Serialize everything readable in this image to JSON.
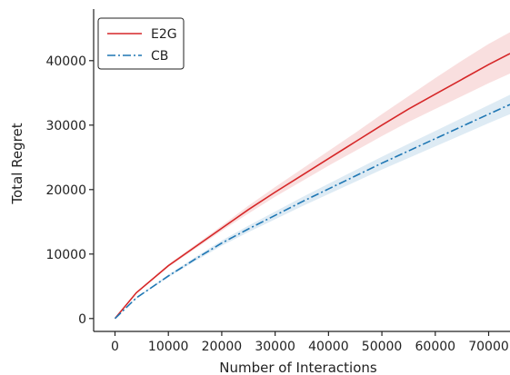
{
  "chart_data": {
    "type": "line",
    "title": "",
    "xlabel": "Number of Interactions",
    "ylabel": "Total Regret",
    "xlim": [
      -4000,
      74000
    ],
    "ylim": [
      -2000,
      48000
    ],
    "xticks": [
      0,
      10000,
      20000,
      30000,
      40000,
      50000,
      60000,
      70000
    ],
    "yticks": [
      0,
      10000,
      20000,
      30000,
      40000
    ],
    "grid": false,
    "legend": "top-left",
    "series": [
      {
        "name": "E2G",
        "color": "#d62728",
        "dash": "solid",
        "x": [
          0,
          4000,
          10000,
          15000,
          20000,
          25000,
          30000,
          35000,
          40000,
          45000,
          50000,
          55000,
          60000,
          65000,
          70000,
          74000
        ],
        "y": [
          0,
          4000,
          8200,
          11100,
          14000,
          16900,
          19600,
          22200,
          24800,
          27400,
          30000,
          32500,
          34800,
          37100,
          39400,
          41100
        ],
        "lower": [
          0,
          3900,
          8000,
          10800,
          13600,
          16300,
          18900,
          21300,
          23700,
          26000,
          28300,
          30500,
          32500,
          34500,
          36500,
          38000
        ],
        "upper": [
          0,
          4100,
          8400,
          11400,
          14400,
          17500,
          20400,
          23200,
          26000,
          28800,
          31700,
          34500,
          37300,
          40000,
          42600,
          44400
        ]
      },
      {
        "name": "CB",
        "color": "#1f77b4",
        "dash": "dashdot",
        "x": [
          0,
          4000,
          10000,
          15000,
          20000,
          25000,
          30000,
          35000,
          40000,
          45000,
          50000,
          55000,
          60000,
          65000,
          70000,
          74000
        ],
        "y": [
          0,
          3200,
          6600,
          9200,
          11700,
          13900,
          16000,
          18100,
          20100,
          22100,
          24100,
          26000,
          27900,
          29800,
          31700,
          33200
        ],
        "lower": [
          0,
          3100,
          6400,
          8900,
          11300,
          13400,
          15400,
          17400,
          19300,
          21200,
          23100,
          24900,
          26700,
          28500,
          30300,
          31700
        ],
        "upper": [
          0,
          3300,
          6800,
          9500,
          12100,
          14400,
          16600,
          18800,
          20900,
          23000,
          25100,
          27100,
          29100,
          31100,
          33100,
          34700
        ]
      }
    ]
  }
}
